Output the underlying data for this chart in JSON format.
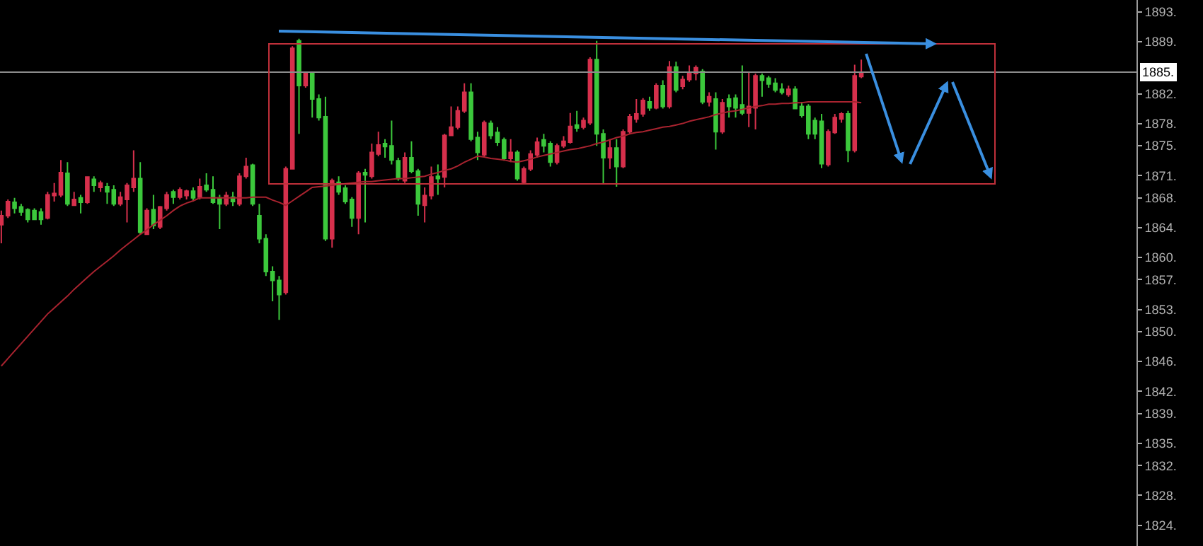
{
  "chart_data": {
    "type": "candlestick",
    "categories": [
      null,
      null,
      null,
      null,
      null,
      null,
      null,
      null,
      null,
      null,
      null,
      null,
      null,
      null,
      null,
      null,
      null,
      null,
      null,
      null,
      null,
      null,
      null,
      null,
      null,
      null,
      null,
      null,
      null,
      null,
      null,
      null,
      null,
      null,
      null,
      null,
      null,
      null,
      null,
      null,
      null,
      null,
      null,
      null,
      null,
      null,
      null,
      null,
      null,
      null,
      null,
      null,
      null,
      null,
      null,
      null,
      null,
      null,
      null,
      null,
      null,
      null,
      null,
      null,
      null,
      null,
      null,
      null,
      null,
      null,
      null,
      null,
      null,
      null,
      null,
      null,
      null,
      null,
      null,
      null,
      null,
      null,
      null,
      null,
      null,
      null,
      null,
      null,
      null,
      null,
      null,
      null,
      null,
      null,
      null,
      null,
      null,
      null,
      null,
      null,
      null,
      null,
      null,
      null,
      null,
      null,
      null,
      null,
      null,
      null,
      null,
      null,
      null,
      null,
      null,
      null,
      null,
      null,
      null,
      null,
      null,
      null,
      null,
      null,
      null,
      null,
      null,
      null,
      null,
      null,
      null
    ],
    "ohlc": [
      [
        1864.4,
        1866.3,
        1861.9,
        1865.6
      ],
      [
        1865.6,
        1867.8,
        1865.3,
        1867.5
      ],
      [
        1867.4,
        1868.0,
        1865.9,
        1866.6
      ],
      [
        1866.8,
        1867.2,
        1865.6,
        1866.1
      ],
      [
        1866.4,
        1866.6,
        1864.7,
        1865.1
      ],
      [
        1866.3,
        1866.6,
        1865.0,
        1865.1
      ],
      [
        1866.1,
        1866.6,
        1864.4,
        1865.1
      ],
      [
        1865.3,
        1868.8,
        1865.1,
        1868.4
      ],
      [
        1868.3,
        1870.0,
        1867.5,
        1868.6
      ],
      [
        1868.4,
        1873.1,
        1868.1,
        1871.4
      ],
      [
        1871.3,
        1872.8,
        1866.9,
        1867.2
      ],
      [
        1867.0,
        1868.8,
        1866.9,
        1867.8
      ],
      [
        1868.0,
        1868.4,
        1865.9,
        1867.4
      ],
      [
        1867.4,
        1870.9,
        1867.2,
        1870.8
      ],
      [
        1870.5,
        1870.9,
        1868.8,
        1869.7
      ],
      [
        1869.4,
        1870.3,
        1868.8,
        1870.0
      ],
      [
        1869.5,
        1870.0,
        1867.2,
        1868.8
      ],
      [
        1869.1,
        1869.7,
        1866.9,
        1867.2
      ],
      [
        1867.2,
        1868.8,
        1866.9,
        1868.1
      ],
      [
        1867.8,
        1870.0,
        1864.7,
        1869.7
      ],
      [
        1869.4,
        1874.4,
        1868.8,
        1870.6
      ],
      [
        1870.6,
        1872.8,
        1863.1,
        1863.4
      ],
      [
        1863.1,
        1866.6,
        1863.0,
        1866.3
      ],
      [
        1866.4,
        1868.4,
        1863.8,
        1864.3
      ],
      [
        1864.1,
        1866.9,
        1863.8,
        1866.8
      ],
      [
        1866.6,
        1868.8,
        1866.3,
        1868.4
      ],
      [
        1868.8,
        1869.1,
        1867.2,
        1868.1
      ],
      [
        1868.1,
        1869.4,
        1867.8,
        1869.1
      ],
      [
        1868.3,
        1869.1,
        1867.8,
        1868.9
      ],
      [
        1868.9,
        1869.4,
        1867.5,
        1868.0
      ],
      [
        1868.1,
        1870.6,
        1867.8,
        1869.5
      ],
      [
        1869.7,
        1871.3,
        1868.8,
        1869.1
      ],
      [
        1869.1,
        1870.9,
        1867.2,
        1867.4
      ],
      [
        1868.0,
        1868.4,
        1863.8,
        1867.2
      ],
      [
        1867.2,
        1868.8,
        1866.9,
        1868.3
      ],
      [
        1868.1,
        1868.8,
        1866.9,
        1867.5
      ],
      [
        1867.2,
        1871.3,
        1866.9,
        1870.9
      ],
      [
        1870.9,
        1873.4,
        1870.6,
        1872.2
      ],
      [
        1872.4,
        1872.6,
        1866.9,
        1867.2
      ],
      [
        1865.6,
        1867.2,
        1861.9,
        1862.5
      ],
      [
        1862.5,
        1863.1,
        1857.5,
        1858.1
      ],
      [
        1858.1,
        1858.8,
        1854.1,
        1856.9
      ],
      [
        1856.9,
        1857.5,
        1851.6,
        1855.0
      ],
      [
        1855.3,
        1872.2,
        1855.0,
        1871.9
      ],
      [
        1871.9,
        1888.4,
        1871.9,
        1888.1
      ],
      [
        1889.1,
        1889.4,
        1876.6,
        1883.1
      ],
      [
        1883.1,
        1885.0,
        1882.8,
        1884.7
      ],
      [
        1884.7,
        1884.7,
        1878.8,
        1881.3
      ],
      [
        1881.3,
        1881.9,
        1878.4,
        1878.8
      ],
      [
        1878.9,
        1881.6,
        1862.2,
        1862.5
      ],
      [
        1862.5,
        1870.6,
        1861.3,
        1870.3
      ],
      [
        1870.1,
        1870.9,
        1868.4,
        1868.8
      ],
      [
        1869.3,
        1869.7,
        1867.2,
        1867.5
      ],
      [
        1867.8,
        1868.1,
        1864.1,
        1865.3
      ],
      [
        1865.3,
        1871.6,
        1863.1,
        1871.3
      ],
      [
        1871.4,
        1871.9,
        1864.7,
        1871.1
      ],
      [
        1870.9,
        1875.3,
        1870.6,
        1874.1
      ],
      [
        1873.9,
        1876.9,
        1873.6,
        1875.1
      ],
      [
        1875.3,
        1875.9,
        1873.4,
        1874.9
      ],
      [
        1875.0,
        1878.4,
        1872.5,
        1873.1
      ],
      [
        1873.0,
        1873.4,
        1870.3,
        1870.6
      ],
      [
        1870.3,
        1874.1,
        1870.0,
        1873.4
      ],
      [
        1873.4,
        1875.6,
        1871.3,
        1871.6
      ],
      [
        1871.6,
        1871.9,
        1865.6,
        1867.2
      ],
      [
        1867.0,
        1869.4,
        1864.7,
        1868.3
      ],
      [
        1868.3,
        1872.2,
        1867.8,
        1870.8
      ],
      [
        1870.9,
        1872.5,
        1868.4,
        1870.6
      ],
      [
        1870.8,
        1876.6,
        1869.4,
        1876.4
      ],
      [
        1876.4,
        1880.3,
        1876.3,
        1877.5
      ],
      [
        1877.5,
        1880.3,
        1877.2,
        1879.7
      ],
      [
        1879.7,
        1883.4,
        1879.4,
        1882.2
      ],
      [
        1882.2,
        1883.4,
        1875.6,
        1875.9
      ],
      [
        1876.1,
        1876.9,
        1873.1,
        1874.1
      ],
      [
        1873.8,
        1878.4,
        1873.6,
        1878.1
      ],
      [
        1878.0,
        1878.4,
        1875.9,
        1876.4
      ],
      [
        1876.8,
        1877.5,
        1875.0,
        1875.5
      ],
      [
        1875.8,
        1876.1,
        1873.0,
        1873.3
      ],
      [
        1873.3,
        1875.9,
        1872.8,
        1874.1
      ],
      [
        1874.1,
        1874.4,
        1870.3,
        1870.6
      ],
      [
        1870.1,
        1872.2,
        1869.9,
        1871.9
      ],
      [
        1871.9,
        1874.4,
        1871.6,
        1873.9
      ],
      [
        1873.8,
        1876.1,
        1873.4,
        1875.5
      ],
      [
        1875.8,
        1876.6,
        1874.1,
        1875.0
      ],
      [
        1875.3,
        1875.6,
        1872.2,
        1872.8
      ],
      [
        1872.8,
        1875.3,
        1872.5,
        1875.0
      ],
      [
        1875.0,
        1876.3,
        1874.7,
        1875.6
      ],
      [
        1875.5,
        1879.4,
        1875.3,
        1877.6
      ],
      [
        1877.8,
        1879.7,
        1876.9,
        1877.4
      ],
      [
        1877.5,
        1878.8,
        1877.2,
        1878.4
      ],
      [
        1878.1,
        1886.9,
        1877.8,
        1886.6
      ],
      [
        1886.6,
        1889.1,
        1875.0,
        1876.6
      ],
      [
        1876.6,
        1877.2,
        1869.9,
        1873.4
      ],
      [
        1873.4,
        1875.9,
        1871.9,
        1874.7
      ],
      [
        1874.7,
        1875.9,
        1869.5,
        1872.2
      ],
      [
        1872.2,
        1877.2,
        1872.0,
        1876.9
      ],
      [
        1876.9,
        1879.3,
        1876.6,
        1878.9
      ],
      [
        1878.6,
        1881.3,
        1878.1,
        1879.3
      ],
      [
        1879.3,
        1881.4,
        1878.9,
        1881.1
      ],
      [
        1880.9,
        1881.6,
        1879.7,
        1880.1
      ],
      [
        1880.1,
        1883.4,
        1879.9,
        1883.1
      ],
      [
        1883.1,
        1883.8,
        1880.0,
        1880.3
      ],
      [
        1880.3,
        1886.4,
        1880.0,
        1885.6
      ],
      [
        1885.6,
        1886.3,
        1882.2,
        1882.5
      ],
      [
        1883.0,
        1884.4,
        1882.6,
        1883.9
      ],
      [
        1883.9,
        1885.8,
        1883.6,
        1884.9
      ],
      [
        1884.7,
        1885.8,
        1883.8,
        1885.5
      ],
      [
        1885.0,
        1885.3,
        1880.6,
        1880.9
      ],
      [
        1880.9,
        1882.2,
        1880.3,
        1881.6
      ],
      [
        1881.3,
        1882.2,
        1874.5,
        1876.9
      ],
      [
        1876.9,
        1881.3,
        1876.6,
        1880.8
      ],
      [
        1881.3,
        1881.9,
        1878.8,
        1880.3
      ],
      [
        1881.4,
        1881.9,
        1878.8,
        1880.1
      ],
      [
        1880.5,
        1885.8,
        1879.1,
        1879.4
      ],
      [
        1879.4,
        1885.0,
        1877.5,
        1880.3
      ],
      [
        1880.1,
        1884.7,
        1877.2,
        1884.4
      ],
      [
        1884.4,
        1884.7,
        1881.6,
        1883.8
      ],
      [
        1884.1,
        1884.4,
        1882.8,
        1883.3
      ],
      [
        1883.4,
        1884.1,
        1882.2,
        1882.5
      ],
      [
        1882.6,
        1883.4,
        1881.9,
        1882.2
      ],
      [
        1881.9,
        1883.1,
        1881.6,
        1882.6
      ],
      [
        1882.6,
        1883.0,
        1879.9,
        1880.0
      ],
      [
        1880.3,
        1880.9,
        1878.8,
        1879.1
      ],
      [
        1880.3,
        1880.6,
        1875.9,
        1876.6
      ],
      [
        1878.4,
        1878.8,
        1875.9,
        1876.6
      ],
      [
        1878.3,
        1879.3,
        1872.0,
        1872.6
      ],
      [
        1872.5,
        1877.2,
        1872.2,
        1876.9
      ],
      [
        1876.8,
        1879.3,
        1876.6,
        1878.8
      ],
      [
        1878.6,
        1879.5,
        1878.1,
        1879.3
      ],
      [
        1879.3,
        1879.7,
        1872.8,
        1874.4
      ],
      [
        1874.4,
        1885.9,
        1874.1,
        1884.4
      ],
      [
        1884.3,
        1886.6,
        1884.1,
        1884.7
      ]
    ],
    "colors": [
      "#d6304c",
      "#d6304c",
      "#3cc83c",
      "#3cc83c",
      "#3cc83c",
      "#3cc83c",
      "#3cc83c",
      "#d6304c",
      "#d6304c",
      "#d6304c",
      "#3cc83c",
      "#d6304c",
      "#3cc83c",
      "#d6304c",
      "#3cc83c",
      "#d6304c",
      "#3cc83c",
      "#3cc83c",
      "#d6304c",
      "#d6304c",
      "#d6304c",
      "#3cc83c",
      "#d6304c",
      "#3cc83c",
      "#d6304c",
      "#d6304c",
      "#3cc83c",
      "#d6304c",
      "#d6304c",
      "#3cc83c",
      "#d6304c",
      "#3cc83c",
      "#3cc83c",
      "#3cc83c",
      "#d6304c",
      "#3cc83c",
      "#d6304c",
      "#d6304c",
      "#3cc83c",
      "#3cc83c",
      "#3cc83c",
      "#3cc83c",
      "#3cc83c",
      "#d6304c",
      "#d6304c",
      "#3cc83c",
      "#d6304c",
      "#3cc83c",
      "#3cc83c",
      "#3cc83c",
      "#d6304c",
      "#3cc83c",
      "#3cc83c",
      "#3cc83c",
      "#d6304c",
      "#3cc83c",
      "#d6304c",
      "#d6304c",
      "#3cc83c",
      "#3cc83c",
      "#3cc83c",
      "#d6304c",
      "#3cc83c",
      "#3cc83c",
      "#d6304c",
      "#d6304c",
      "#3cc83c",
      "#d6304c",
      "#d6304c",
      "#d6304c",
      "#d6304c",
      "#3cc83c",
      "#3cc83c",
      "#d6304c",
      "#3cc83c",
      "#3cc83c",
      "#3cc83c",
      "#d6304c",
      "#3cc83c",
      "#d6304c",
      "#d6304c",
      "#d6304c",
      "#3cc83c",
      "#3cc83c",
      "#d6304c",
      "#d6304c",
      "#d6304c",
      "#3cc83c",
      "#d6304c",
      "#d6304c",
      "#3cc83c",
      "#3cc83c",
      "#d6304c",
      "#3cc83c",
      "#d6304c",
      "#d6304c",
      "#d6304c",
      "#d6304c",
      "#3cc83c",
      "#d6304c",
      "#3cc83c",
      "#d6304c",
      "#3cc83c",
      "#d6304c",
      "#d6304c",
      "#d6304c",
      "#3cc83c",
      "#d6304c",
      "#3cc83c",
      "#d6304c",
      "#3cc83c",
      "#3cc83c",
      "#3cc83c",
      "#d6304c",
      "#d6304c",
      "#3cc83c",
      "#3cc83c",
      "#3cc83c",
      "#3cc83c",
      "#d6304c",
      "#3cc83c",
      "#3cc83c",
      "#3cc83c",
      "#3cc83c",
      "#3cc83c",
      "#d6304c",
      "#d6304c",
      "#d6304c",
      "#3cc83c",
      "#d6304c",
      "#d6304c"
    ],
    "series": [
      {
        "type": "line",
        "color": "#a8232f",
        "values": [
          1845.4,
          1846.4,
          1847.4,
          1848.4,
          1849.4,
          1850.4,
          1851.4,
          1852.4,
          1853.2,
          1854.0,
          1854.8,
          1855.7,
          1856.5,
          1857.3,
          1858.1,
          1858.8,
          1859.5,
          1860.2,
          1861.0,
          1861.7,
          1862.4,
          1863.1,
          1863.7,
          1864.4,
          1865.0,
          1865.6,
          1866.3,
          1866.9,
          1867.3,
          1867.6,
          1868.0,
          1868.0,
          1868.0,
          1868.0,
          1868.0,
          1868.0,
          1868.0,
          1868.0,
          1868.1,
          1868.1,
          1868.1,
          1867.7,
          1867.4,
          1867.0,
          1867.6,
          1868.2,
          1868.8,
          1869.4,
          1869.5,
          1869.6,
          1869.7,
          1869.8,
          1869.9,
          1870.0,
          1870.1,
          1870.2,
          1870.2,
          1870.3,
          1870.4,
          1870.5,
          1870.6,
          1870.6,
          1870.7,
          1870.8,
          1870.9,
          1871.2,
          1871.4,
          1871.7,
          1871.9,
          1872.3,
          1872.8,
          1873.2,
          1873.6,
          1873.5,
          1873.3,
          1873.2,
          1873.1,
          1872.9,
          1872.8,
          1873.0,
          1873.2,
          1873.5,
          1873.7,
          1873.9,
          1874.1,
          1874.3,
          1874.5,
          1874.6,
          1874.8,
          1875.0,
          1875.3,
          1875.5,
          1875.8,
          1876.1,
          1876.3,
          1876.6,
          1876.8,
          1876.9,
          1877.1,
          1877.3,
          1877.5,
          1877.6,
          1877.8,
          1878.0,
          1878.3,
          1878.5,
          1878.7,
          1878.9,
          1879.2,
          1879.4,
          1879.6,
          1879.7,
          1879.9,
          1880.1,
          1880.3,
          1880.4,
          1880.6,
          1880.6,
          1880.7,
          1880.7,
          1880.8,
          1880.8,
          1880.9,
          1880.9,
          1880.9,
          1880.9,
          1880.9,
          1880.9,
          1880.9,
          1880.9,
          1880.8
        ]
      }
    ],
    "ylim": [
      1821.2,
      1894.6
    ],
    "yticks": [
      {
        "value": 1824,
        "label": "1824."
      },
      {
        "value": 1828,
        "label": "1828."
      },
      {
        "value": 1832,
        "label": "1832."
      },
      {
        "value": 1835,
        "label": "1835."
      },
      {
        "value": 1839,
        "label": "1839."
      },
      {
        "value": 1842,
        "label": "1842."
      },
      {
        "value": 1846,
        "label": "1846."
      },
      {
        "value": 1850,
        "label": "1850."
      },
      {
        "value": 1853,
        "label": "1853."
      },
      {
        "value": 1857,
        "label": "1857."
      },
      {
        "value": 1860,
        "label": "1860."
      },
      {
        "value": 1864,
        "label": "1864."
      },
      {
        "value": 1868,
        "label": "1868."
      },
      {
        "value": 1871,
        "label": "1871."
      },
      {
        "value": 1875,
        "label": "1875."
      },
      {
        "value": 1878,
        "label": "1878."
      },
      {
        "value": 1882,
        "label": "1882."
      },
      {
        "value": 1889,
        "label": "1889."
      },
      {
        "value": 1893,
        "label": "1893."
      }
    ],
    "ref_lines": [
      {
        "axis": "y",
        "value": 1884.9,
        "label": "1885.",
        "color": "#8c8c8c"
      }
    ]
  }
}
